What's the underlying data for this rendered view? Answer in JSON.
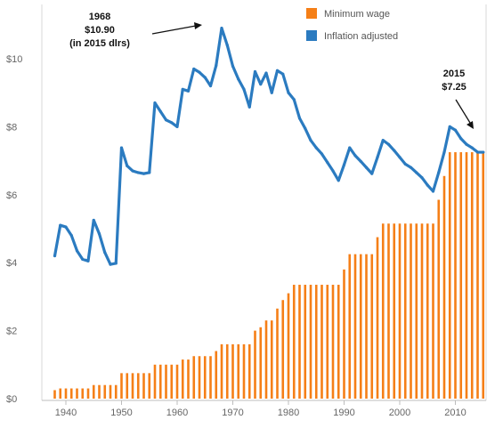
{
  "chart_data": {
    "type": "bar+line",
    "xlabel": "",
    "ylabel": "",
    "xlim": [
      1936,
      2016
    ],
    "ylim": [
      0,
      11
    ],
    "x_ticks": [
      1940,
      1950,
      1960,
      1970,
      1980,
      1990,
      2000,
      2010
    ],
    "x_tick_labels": [
      "1940",
      "1950",
      "1960",
      "1970",
      "1980",
      "1990",
      "2000",
      "2010"
    ],
    "y_ticks": [
      0,
      2,
      4,
      6,
      8,
      10
    ],
    "y_tick_labels": [
      "$0",
      "$2",
      "$4",
      "$6",
      "$8",
      "$10"
    ],
    "grid": false,
    "legend_position": "top-right",
    "series": [
      {
        "name": "Minimum wage",
        "type": "bar",
        "color": "#f57f17",
        "x": [
          1938,
          1939,
          1940,
          1941,
          1942,
          1943,
          1944,
          1945,
          1946,
          1947,
          1948,
          1949,
          1950,
          1951,
          1952,
          1953,
          1954,
          1955,
          1956,
          1957,
          1958,
          1959,
          1960,
          1961,
          1962,
          1963,
          1964,
          1965,
          1966,
          1967,
          1968,
          1969,
          1970,
          1971,
          1972,
          1973,
          1974,
          1975,
          1976,
          1977,
          1978,
          1979,
          1980,
          1981,
          1982,
          1983,
          1984,
          1985,
          1986,
          1987,
          1988,
          1989,
          1990,
          1991,
          1992,
          1993,
          1994,
          1995,
          1996,
          1997,
          1998,
          1999,
          2000,
          2001,
          2002,
          2003,
          2004,
          2005,
          2006,
          2007,
          2008,
          2009,
          2010,
          2011,
          2012,
          2013,
          2014,
          2015
        ],
        "values": [
          0.25,
          0.3,
          0.3,
          0.3,
          0.3,
          0.3,
          0.3,
          0.4,
          0.4,
          0.4,
          0.4,
          0.4,
          0.75,
          0.75,
          0.75,
          0.75,
          0.75,
          0.75,
          1.0,
          1.0,
          1.0,
          1.0,
          1.0,
          1.15,
          1.15,
          1.25,
          1.25,
          1.25,
          1.25,
          1.4,
          1.6,
          1.6,
          1.6,
          1.6,
          1.6,
          1.6,
          2.0,
          2.1,
          2.3,
          2.3,
          2.65,
          2.9,
          3.1,
          3.35,
          3.35,
          3.35,
          3.35,
          3.35,
          3.35,
          3.35,
          3.35,
          3.35,
          3.8,
          4.25,
          4.25,
          4.25,
          4.25,
          4.25,
          4.75,
          5.15,
          5.15,
          5.15,
          5.15,
          5.15,
          5.15,
          5.15,
          5.15,
          5.15,
          5.15,
          5.85,
          6.55,
          7.25,
          7.25,
          7.25,
          7.25,
          7.25,
          7.25,
          7.25
        ]
      },
      {
        "name": "Inflation adjusted",
        "type": "line",
        "color": "#2b7bc0",
        "x": [
          1938,
          1939,
          1940,
          1941,
          1942,
          1943,
          1944,
          1945,
          1946,
          1947,
          1948,
          1949,
          1950,
          1951,
          1952,
          1953,
          1954,
          1955,
          1956,
          1957,
          1958,
          1959,
          1960,
          1961,
          1962,
          1963,
          1964,
          1965,
          1966,
          1967,
          1968,
          1969,
          1970,
          1971,
          1972,
          1973,
          1974,
          1975,
          1976,
          1977,
          1978,
          1979,
          1980,
          1981,
          1982,
          1983,
          1984,
          1985,
          1986,
          1987,
          1988,
          1989,
          1990,
          1991,
          1992,
          1993,
          1994,
          1995,
          1996,
          1997,
          1998,
          1999,
          2000,
          2001,
          2002,
          2003,
          2004,
          2005,
          2006,
          2007,
          2008,
          2009,
          2010,
          2011,
          2012,
          2013,
          2014,
          2015
        ],
        "values": [
          4.2,
          5.1,
          5.05,
          4.8,
          4.35,
          4.1,
          4.05,
          5.25,
          4.85,
          4.3,
          3.95,
          3.98,
          7.38,
          6.85,
          6.7,
          6.65,
          6.62,
          6.65,
          8.7,
          8.45,
          8.2,
          8.12,
          8.0,
          9.1,
          9.05,
          9.7,
          9.6,
          9.45,
          9.2,
          9.8,
          10.9,
          10.4,
          9.78,
          9.4,
          9.1,
          8.58,
          9.62,
          9.25,
          9.58,
          9.0,
          9.65,
          9.55,
          9.0,
          8.8,
          8.25,
          7.95,
          7.6,
          7.38,
          7.2,
          6.95,
          6.7,
          6.42,
          6.88,
          7.38,
          7.15,
          6.98,
          6.8,
          6.62,
          7.1,
          7.6,
          7.48,
          7.3,
          7.1,
          6.9,
          6.8,
          6.65,
          6.5,
          6.28,
          6.1,
          6.65,
          7.25,
          8.0,
          7.9,
          7.65,
          7.48,
          7.38,
          7.25,
          7.25
        ]
      }
    ],
    "annotations": [
      {
        "lines": [
          "1968",
          "$10.90",
          "(in 2015 dlrs)"
        ],
        "x": 1968,
        "y": 10.9
      },
      {
        "lines": [
          "2015",
          "$7.25"
        ],
        "x": 2015,
        "y": 7.25
      }
    ]
  }
}
